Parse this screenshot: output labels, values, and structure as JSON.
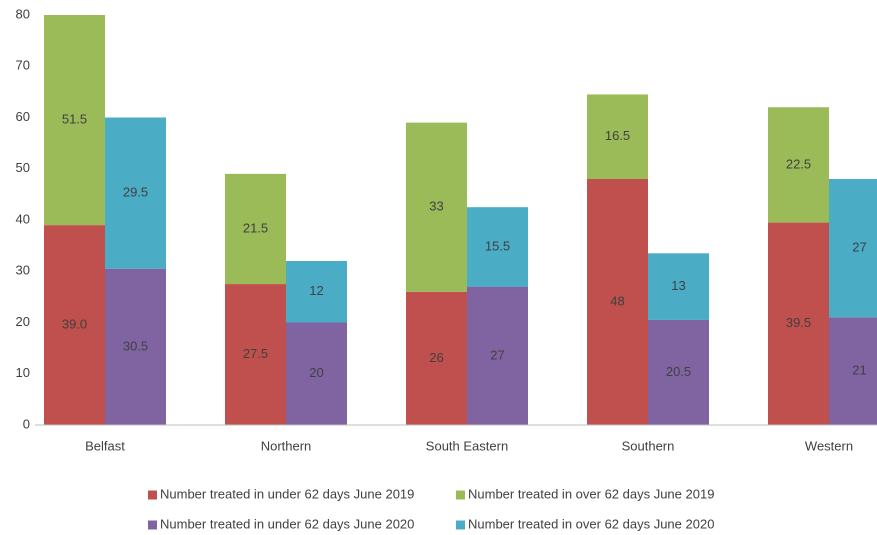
{
  "chart_data": {
    "type": "bar",
    "categories": [
      "Belfast",
      "Northern",
      "South Eastern",
      "Southern",
      "Western"
    ],
    "series": [
      {
        "name": "Number treated in under 62 days June 2019",
        "color": "#c0504d",
        "values": [
          39,
          27.5,
          26,
          48,
          39.5
        ],
        "value_labels": [
          "39.0",
          "27.5",
          "26",
          "48",
          "39.5"
        ]
      },
      {
        "name": "Number treated in over 62 days June 2019",
        "color": "#9bbb59",
        "values": [
          51.5,
          21.5,
          33,
          16.5,
          22.5
        ]
      },
      {
        "name": "Number treated in under 62 days June 2020",
        "color": "#8064a2",
        "values": [
          30.5,
          20,
          27,
          20.5,
          21
        ]
      },
      {
        "name": "Number treated in over 62 days June 2020",
        "color": "#4bacc6",
        "values": [
          29.5,
          12,
          15.5,
          13,
          27
        ]
      }
    ],
    "ylim": [
      0,
      80
    ],
    "yticks": [
      0,
      10,
      20,
      30,
      40,
      50,
      60,
      70,
      80
    ],
    "grid": false
  }
}
